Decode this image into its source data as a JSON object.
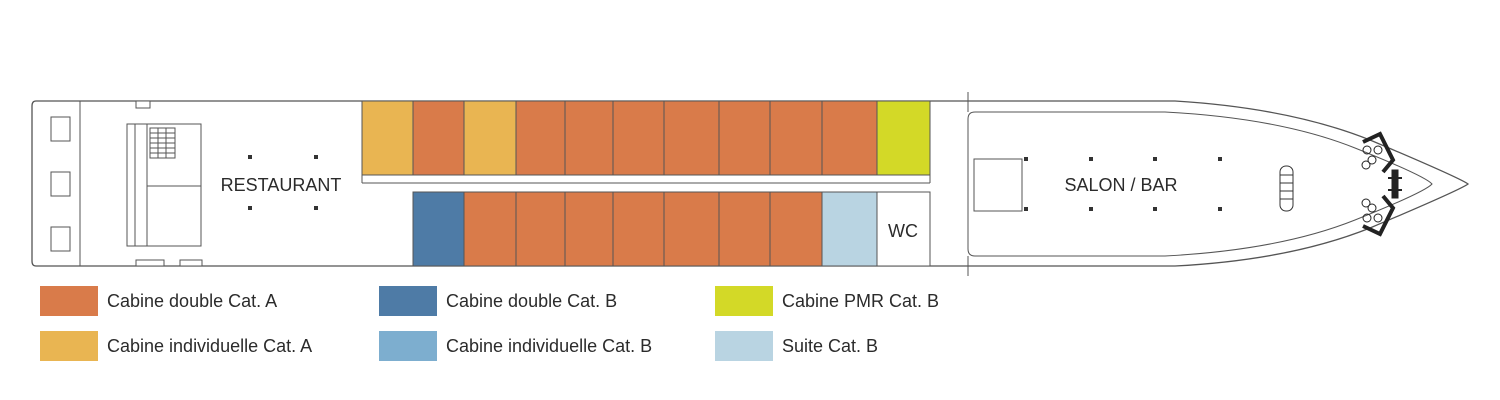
{
  "deck": {
    "restaurant_label": "RESTAURANT",
    "salon_label": "SALON / BAR",
    "wc_label": "WC"
  },
  "colors": {
    "double_a": "#D97B4A",
    "double_b": "#4E7BA6",
    "pmr_b": "#D3D927",
    "single_a": "#E9B552",
    "single_b": "#7DAECF",
    "suite_b": "#B9D4E2"
  },
  "cabins": {
    "top_row": [
      "single_a",
      "double_a",
      "single_a",
      "double_a",
      "double_a",
      "double_a",
      "double_a",
      "double_a",
      "double_a",
      "double_a",
      "pmr_b"
    ],
    "bottom_row": [
      "double_b",
      "double_a",
      "double_a",
      "double_a",
      "double_a",
      "double_a",
      "double_a",
      "double_a",
      "suite_b"
    ]
  },
  "legend": [
    {
      "key": "double_a",
      "label": "Cabine double Cat. A"
    },
    {
      "key": "double_b",
      "label": "Cabine double Cat. B"
    },
    {
      "key": "pmr_b",
      "label": "Cabine PMR Cat. B"
    },
    {
      "key": "single_a",
      "label": "Cabine individuelle Cat. A"
    },
    {
      "key": "single_b",
      "label": "Cabine individuelle Cat. B"
    },
    {
      "key": "suite_b",
      "label": "Suite Cat. B"
    }
  ]
}
